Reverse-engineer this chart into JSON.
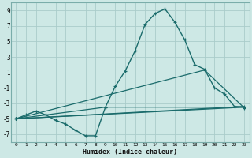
{
  "xlabel": "Humidex (Indice chaleur)",
  "bg_color": "#cde8e5",
  "line_color": "#1a6b6b",
  "grid_color": "#aaccca",
  "xlim": [
    -0.5,
    23.5
  ],
  "ylim": [
    -8,
    10
  ],
  "yticks": [
    -7,
    -5,
    -3,
    -1,
    1,
    3,
    5,
    7,
    9
  ],
  "xticks": [
    0,
    1,
    2,
    3,
    4,
    5,
    6,
    7,
    8,
    9,
    10,
    11,
    12,
    13,
    14,
    15,
    16,
    17,
    18,
    19,
    20,
    21,
    22,
    23
  ],
  "series1_x": [
    0,
    1,
    2,
    3,
    4,
    5,
    6,
    7,
    8,
    9,
    10,
    11,
    12,
    13,
    14,
    15,
    16,
    17,
    18,
    19,
    20,
    21,
    22,
    23
  ],
  "series1_y": [
    -5,
    -4.5,
    -4,
    -4.5,
    -5.2,
    -5.7,
    -6.5,
    -7.2,
    -7.2,
    -3.5,
    -0.8,
    1.2,
    3.8,
    7.2,
    8.6,
    9.2,
    7.5,
    5.2,
    2.0,
    1.4,
    -1.0,
    -1.8,
    -3.4,
    -3.5
  ],
  "series2_x": [
    0,
    23
  ],
  "series2_y": [
    -5,
    -3.5
  ],
  "series3_x": [
    0,
    19,
    23
  ],
  "series3_y": [
    -5,
    1.3,
    -3.6
  ],
  "series4_x": [
    0,
    9,
    23
  ],
  "series4_y": [
    -5,
    -3.5,
    -3.5
  ],
  "series5_x": [
    0,
    23
  ],
  "series5_y": [
    -5,
    -3.4
  ]
}
